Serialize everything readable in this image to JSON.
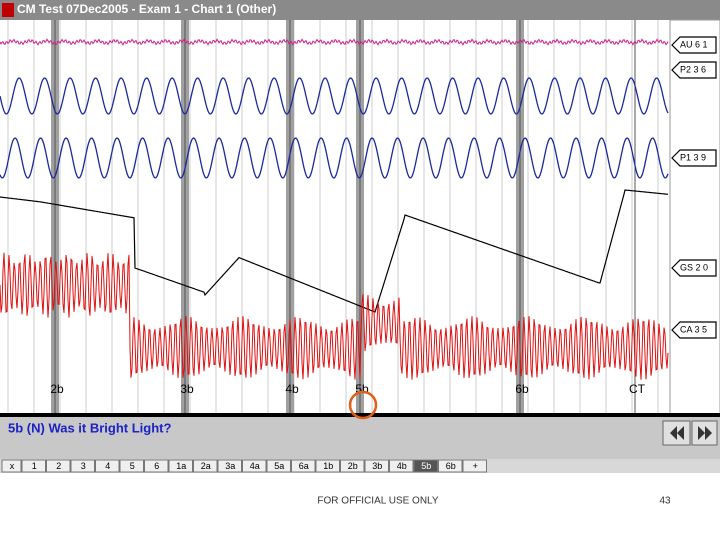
{
  "window": {
    "title": "CM Test 07Dec2005 - Exam 1 - Chart 1 (Other)"
  },
  "channels": [
    {
      "label": "AU 6 1"
    },
    {
      "label": "P2 3 6"
    },
    {
      "label": "P1 3 9"
    },
    {
      "label": "GS 2 0"
    },
    {
      "label": "CA 3 5"
    }
  ],
  "markers": [
    "2b",
    "3b",
    "4b",
    "5b",
    "6b",
    "CT"
  ],
  "question": "5b (N) Was it Bright Light?",
  "tabs": [
    "x",
    "1",
    "2",
    "3",
    "4",
    "5",
    "6",
    "1a",
    "2a",
    "3a",
    "4a",
    "5a",
    "6a",
    "1b",
    "2b",
    "3b",
    "4b",
    "5b",
    "6b",
    "+"
  ],
  "footer": {
    "classification": "FOR OFFICIAL USE ONLY",
    "page": "43"
  }
}
